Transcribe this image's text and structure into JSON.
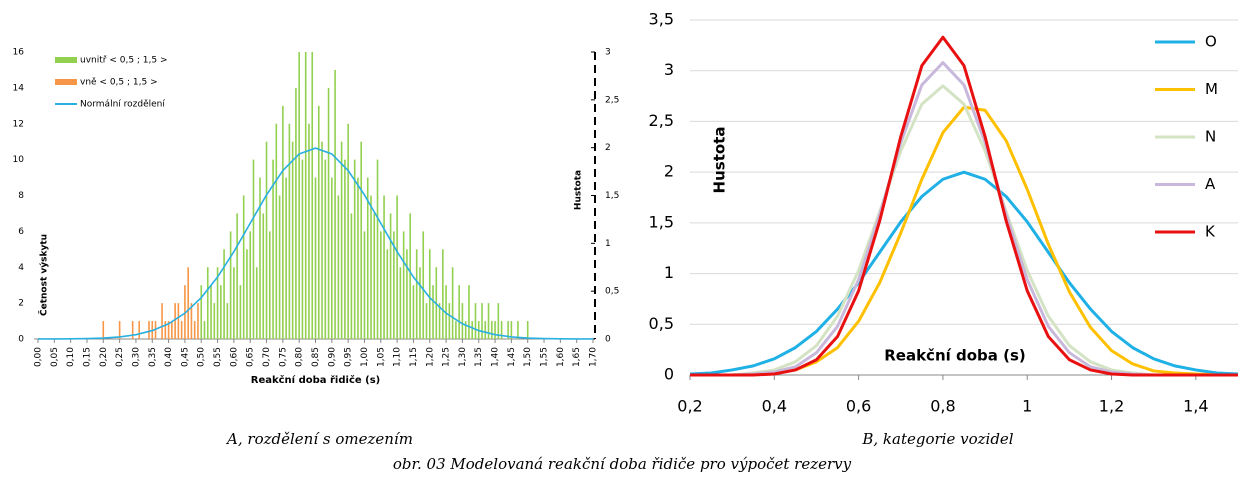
{
  "chart_data": [
    {
      "type": "bar",
      "caption": "A, rozdělení s omezením",
      "xlabel": "Reakční doba řidiče (s)",
      "ylabel": "Četnost výskytu",
      "y2label": "Hustota",
      "xlim": [
        0,
        1.7
      ],
      "ylim": [
        0,
        16
      ],
      "y2lim": [
        0,
        3
      ],
      "xticks": [
        {
          "value": 0,
          "label": "0,00"
        },
        {
          "value": 0.05,
          "label": "0,05"
        },
        {
          "value": 0.1,
          "label": "0,10"
        },
        {
          "value": 0.15,
          "label": "0,15"
        },
        {
          "value": 0.2,
          "label": "0,20"
        },
        {
          "value": 0.25,
          "label": "0,25"
        },
        {
          "value": 0.3,
          "label": "0,30"
        },
        {
          "value": 0.35,
          "label": "0,35"
        },
        {
          "value": 0.4,
          "label": "0,40"
        },
        {
          "value": 0.45,
          "label": "0,45"
        },
        {
          "value": 0.5,
          "label": "0,50"
        },
        {
          "value": 0.55,
          "label": "0,55"
        },
        {
          "value": 0.6,
          "label": "0,60"
        },
        {
          "value": 0.65,
          "label": "0,65"
        },
        {
          "value": 0.7,
          "label": "0,70"
        },
        {
          "value": 0.75,
          "label": "0,75"
        },
        {
          "value": 0.8,
          "label": "0,80"
        },
        {
          "value": 0.85,
          "label": "0,85"
        },
        {
          "value": 0.9,
          "label": "0,90"
        },
        {
          "value": 0.95,
          "label": "0,95"
        },
        {
          "value": 1,
          "label": "1,00"
        },
        {
          "value": 1.05,
          "label": "1,05"
        },
        {
          "value": 1.1,
          "label": "1,10"
        },
        {
          "value": 1.15,
          "label": "1,15"
        },
        {
          "value": 1.2,
          "label": "1,20"
        },
        {
          "value": 1.25,
          "label": "1,25"
        },
        {
          "value": 1.3,
          "label": "1,30"
        },
        {
          "value": 1.35,
          "label": "1,35"
        },
        {
          "value": 1.4,
          "label": "1,40"
        },
        {
          "value": 1.45,
          "label": "1,45"
        },
        {
          "value": 1.5,
          "label": "1,50"
        },
        {
          "value": 1.55,
          "label": "1,55"
        },
        {
          "value": 1.6,
          "label": "1,60"
        },
        {
          "value": 1.65,
          "label": "1,65"
        },
        {
          "value": 1.7,
          "label": "1,70"
        }
      ],
      "yticks": [
        0,
        2,
        4,
        6,
        8,
        10,
        12,
        14,
        16
      ],
      "y2ticks": [
        0,
        {
          "value": 0.5,
          "label": "0,5"
        },
        1,
        {
          "value": 1.5,
          "label": "1,5"
        },
        2,
        {
          "value": 2.5,
          "label": "2,5"
        },
        3
      ],
      "series": [
        {
          "name": "uvnitř < 0,5 ; 1,5 >",
          "color": "#92d050",
          "x": [
            0.5,
            0.51,
            0.52,
            0.53,
            0.54,
            0.55,
            0.56,
            0.57,
            0.58,
            0.59,
            0.6,
            0.61,
            0.62,
            0.63,
            0.64,
            0.65,
            0.66,
            0.67,
            0.68,
            0.69,
            0.7,
            0.71,
            0.72,
            0.73,
            0.74,
            0.75,
            0.76,
            0.77,
            0.78,
            0.79,
            0.8,
            0.81,
            0.82,
            0.83,
            0.84,
            0.85,
            0.86,
            0.87,
            0.88,
            0.89,
            0.9,
            0.91,
            0.92,
            0.93,
            0.94,
            0.95,
            0.96,
            0.97,
            0.98,
            0.99,
            1,
            1.01,
            1.02,
            1.03,
            1.04,
            1.05,
            1.06,
            1.07,
            1.08,
            1.09,
            1.1,
            1.11,
            1.12,
            1.13,
            1.14,
            1.15,
            1.16,
            1.17,
            1.18,
            1.19,
            1.2,
            1.21,
            1.22,
            1.23,
            1.24,
            1.25,
            1.26,
            1.27,
            1.28,
            1.29,
            1.3,
            1.31,
            1.32,
            1.33,
            1.34,
            1.35,
            1.36,
            1.37,
            1.38,
            1.39,
            1.4,
            1.41,
            1.42,
            1.43,
            1.44,
            1.45,
            1.46,
            1.47,
            1.48,
            1.49,
            1.5
          ],
          "values": [
            3,
            1,
            4,
            3,
            2,
            4,
            3,
            5,
            2,
            6,
            4,
            7,
            3,
            8,
            5,
            6,
            10,
            4,
            9,
            7,
            11,
            6,
            10,
            12,
            8,
            13,
            9,
            12,
            11,
            14,
            16,
            10,
            16,
            12,
            16,
            9,
            13,
            11,
            10,
            14,
            9,
            15,
            8,
            11,
            10,
            12,
            7,
            10,
            9,
            11,
            6,
            9,
            8,
            7,
            10,
            6,
            8,
            5,
            7,
            6,
            8,
            4,
            6,
            5,
            7,
            3,
            5,
            4,
            6,
            2,
            5,
            3,
            4,
            2,
            5,
            3,
            2,
            4,
            1,
            3,
            2,
            1,
            3,
            1,
            2,
            1,
            2,
            1,
            2,
            1,
            1,
            2,
            1,
            0,
            1,
            1,
            0,
            1,
            0,
            0,
            1
          ]
        },
        {
          "name": "vně  < 0,5 ; 1,5 >",
          "color": "#f79646",
          "x": [
            0.2,
            0.21,
            0.22,
            0.23,
            0.24,
            0.25,
            0.26,
            0.27,
            0.28,
            0.29,
            0.3,
            0.31,
            0.32,
            0.33,
            0.34,
            0.35,
            0.36,
            0.37,
            0.38,
            0.39,
            0.4,
            0.41,
            0.42,
            0.43,
            0.44,
            0.45,
            0.46,
            0.47,
            0.48,
            0.49
          ],
          "values": [
            1,
            0,
            0,
            0,
            0,
            1,
            0,
            0,
            0,
            1,
            0,
            1,
            0,
            0,
            1,
            1,
            1,
            0,
            2,
            1,
            1,
            1,
            2,
            2,
            1,
            3,
            4,
            2,
            1,
            2
          ]
        },
        {
          "name": "Normální rozdělení",
          "color": "#2ab0e0",
          "type": "line",
          "axis": "y2",
          "x": [
            0,
            0.05,
            0.1,
            0.15,
            0.2,
            0.25,
            0.3,
            0.35,
            0.4,
            0.45,
            0.5,
            0.55,
            0.6,
            0.65,
            0.7,
            0.75,
            0.8,
            0.85,
            0.9,
            0.95,
            1,
            1.05,
            1.1,
            1.15,
            1.2,
            1.25,
            1.3,
            1.35,
            1.4,
            1.45,
            1.5,
            1.55,
            1.6,
            1.65,
            1.7
          ],
          "values": [
            0.0002,
            0.0007,
            0.0018,
            0.0044,
            0.01,
            0.022,
            0.045,
            0.088,
            0.159,
            0.27,
            0.432,
            0.648,
            0.913,
            1.21,
            1.506,
            1.761,
            1.934,
            1.995,
            1.934,
            1.761,
            1.506,
            1.21,
            0.913,
            0.648,
            0.432,
            0.27,
            0.159,
            0.088,
            0.045,
            0.022,
            0.01,
            0.0044,
            0.0018,
            0.0007,
            0.0002
          ]
        }
      ]
    },
    {
      "type": "line",
      "caption": "B, kategorie vozidel",
      "xlabel": "Reakční doba (s)",
      "ylabel": "Hustota",
      "xlim": [
        0.2,
        1.5
      ],
      "ylim": [
        0,
        3.5
      ],
      "grid": true,
      "xticks": [
        {
          "value": 0.2,
          "label": "0,2"
        },
        {
          "value": 0.4,
          "label": "0,4"
        },
        {
          "value": 0.6,
          "label": "0,6"
        },
        {
          "value": 0.8,
          "label": "0,8"
        },
        1,
        {
          "value": 1.2,
          "label": "1,2"
        },
        {
          "value": 1.4,
          "label": "1,4"
        }
      ],
      "yticks": [
        0,
        {
          "value": 0.5,
          "label": "0,5"
        },
        1,
        {
          "value": 1.5,
          "label": "1,5"
        },
        2,
        {
          "value": 2.5,
          "label": "2,5"
        },
        3,
        {
          "value": 3.5,
          "label": "3,5"
        }
      ],
      "x": [
        0.2,
        0.25,
        0.3,
        0.35,
        0.4,
        0.45,
        0.5,
        0.55,
        0.6,
        0.65,
        0.7,
        0.75,
        0.8,
        0.85,
        0.9,
        0.95,
        1,
        1.05,
        1.1,
        1.15,
        1.2,
        1.25,
        1.3,
        1.35,
        1.4,
        1.45,
        1.5
      ],
      "series": [
        {
          "name": "O",
          "color": "#1fb0e6",
          "values": [
            0.01,
            0.02,
            0.05,
            0.09,
            0.16,
            0.27,
            0.43,
            0.65,
            0.91,
            1.21,
            1.51,
            1.76,
            1.93,
            2.0,
            1.93,
            1.76,
            1.51,
            1.21,
            0.91,
            0.65,
            0.43,
            0.27,
            0.16,
            0.09,
            0.05,
            0.02,
            0.01
          ]
        },
        {
          "name": "M",
          "color": "#ffc000",
          "values": [
            0,
            0,
            0,
            0.01,
            0.02,
            0.05,
            0.13,
            0.27,
            0.53,
            0.91,
            1.4,
            1.93,
            2.39,
            2.64,
            2.61,
            2.31,
            1.83,
            1.29,
            0.82,
            0.47,
            0.24,
            0.11,
            0.04,
            0.02,
            0.01,
            0,
            0
          ]
        },
        {
          "name": "N",
          "color": "#d4e3c4",
          "values": [
            0,
            0,
            0,
            0.02,
            0.05,
            0.13,
            0.29,
            0.58,
            1.03,
            1.61,
            2.21,
            2.67,
            2.85,
            2.67,
            2.21,
            1.61,
            1.03,
            0.58,
            0.29,
            0.13,
            0.05,
            0.02,
            0,
            0,
            0,
            0,
            0
          ]
        },
        {
          "name": "A",
          "color": "#c8b8dc",
          "values": [
            0,
            0,
            0,
            0.01,
            0.03,
            0.08,
            0.22,
            0.48,
            0.94,
            1.58,
            2.29,
            2.86,
            3.08,
            2.86,
            2.29,
            1.58,
            0.94,
            0.48,
            0.22,
            0.08,
            0.03,
            0.01,
            0,
            0,
            0,
            0,
            0
          ]
        },
        {
          "name": "K",
          "color": "#e81010",
          "values": [
            0,
            0,
            0,
            0,
            0.01,
            0.05,
            0.15,
            0.38,
            0.83,
            1.52,
            2.35,
            3.05,
            3.33,
            3.05,
            2.35,
            1.52,
            0.83,
            0.38,
            0.15,
            0.05,
            0.01,
            0,
            0,
            0,
            0,
            0,
            0
          ]
        }
      ]
    }
  ],
  "figure_caption": "obr. 03 Modelovaná reakční doba řidiče pro výpočet rezervy"
}
